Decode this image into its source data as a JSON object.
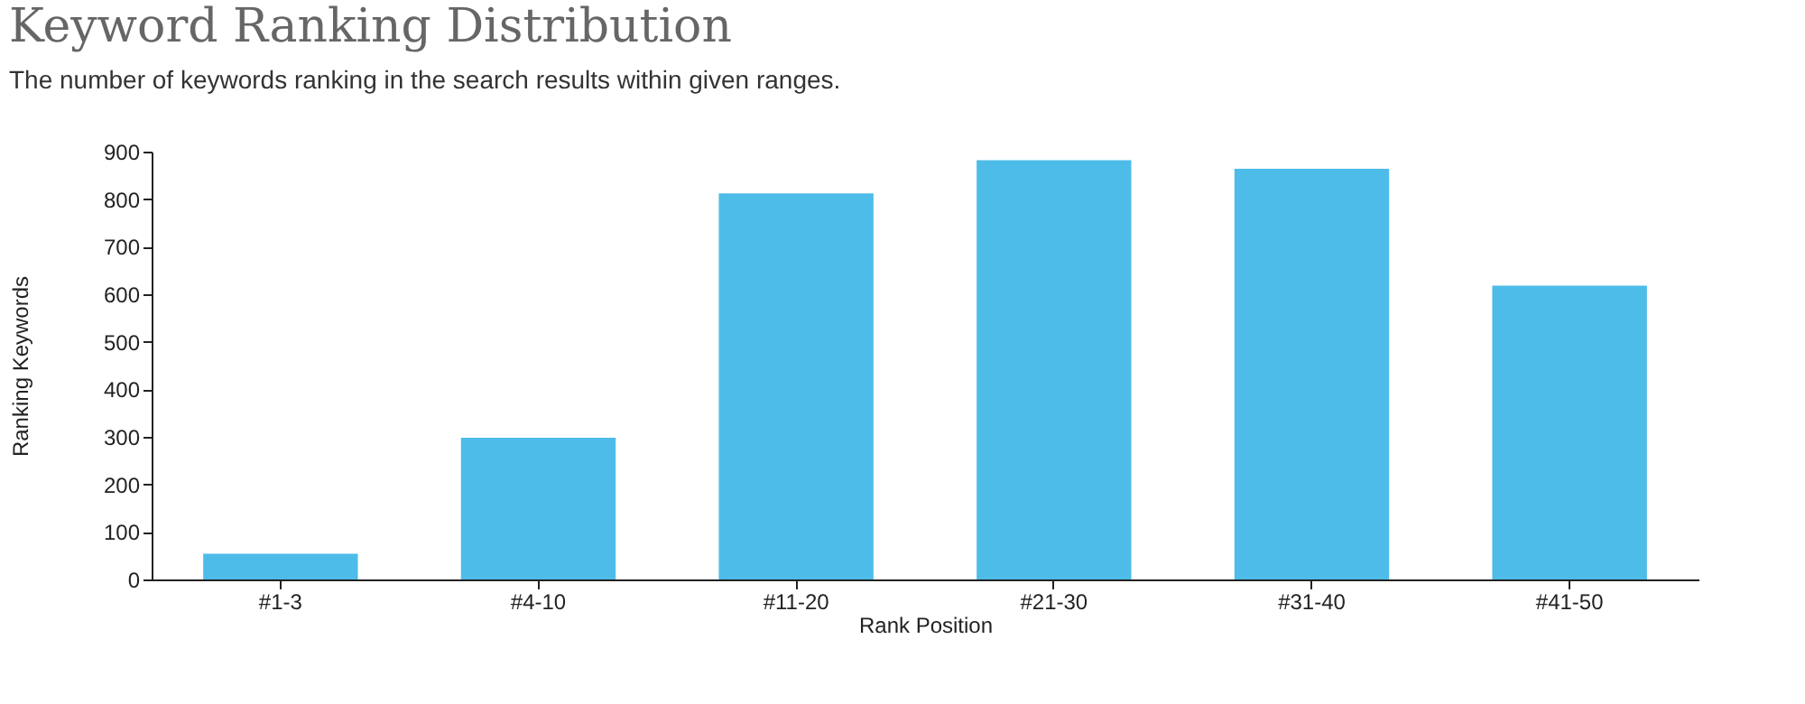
{
  "chart_data": {
    "type": "bar",
    "title": "Keyword Ranking Distribution",
    "subtitle": "The number of keywords ranking in the search results within given ranges.",
    "xlabel": "Rank Position",
    "ylabel": "Ranking Keywords",
    "categories": [
      "#1-3",
      "#4-10",
      "#11-20",
      "#21-30",
      "#31-40",
      "#41-50"
    ],
    "values": [
      54,
      298,
      812,
      882,
      864,
      618
    ],
    "color": "#4dbce9",
    "ylim": [
      0,
      900
    ],
    "yticks": [
      0,
      100,
      200,
      300,
      400,
      500,
      600,
      700,
      800,
      900
    ],
    "grid": false
  }
}
